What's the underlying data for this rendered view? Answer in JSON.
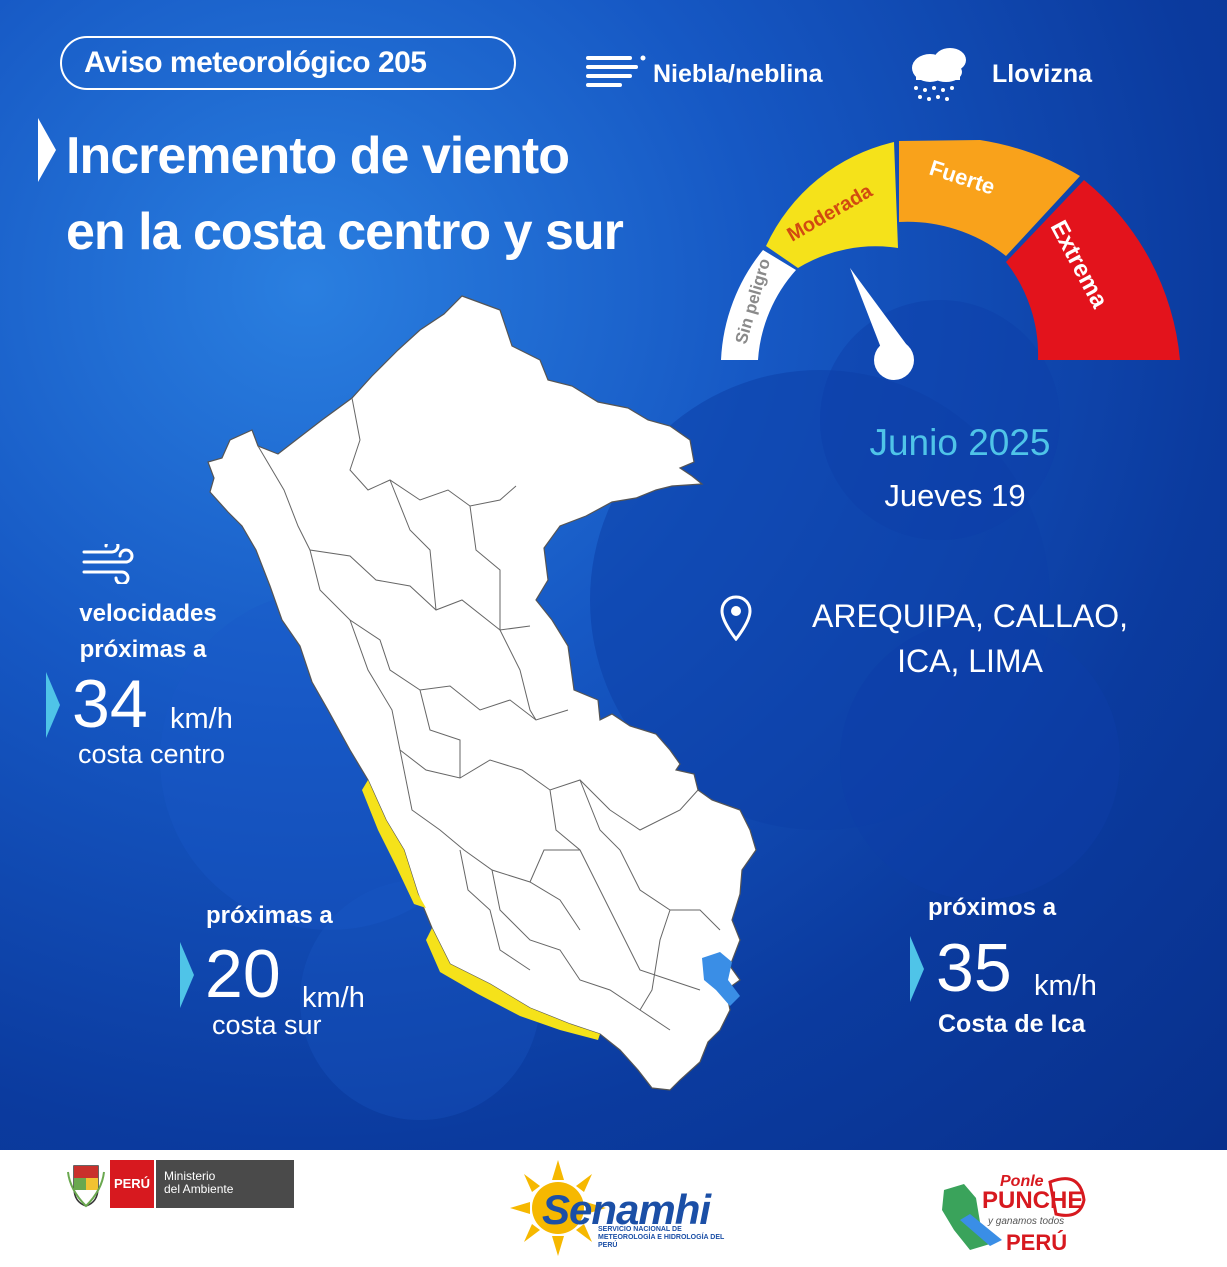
{
  "header": {
    "badge": "Aviso meteorológico 205",
    "legend": [
      {
        "icon": "fog-icon",
        "label": "Niebla/neblina"
      },
      {
        "icon": "drizzle-icon",
        "label": "Llovizna"
      }
    ]
  },
  "title": {
    "line1": "Incremento de viento",
    "line2": "en la costa centro y sur"
  },
  "gauge": {
    "levels": [
      "Sin peligro",
      "Moderada",
      "Fuerte",
      "Extrema"
    ],
    "colors": [
      "#ffffff",
      "#f5e21a",
      "#f9a21b",
      "#e3131c"
    ],
    "active_level": "Moderada"
  },
  "date": {
    "month": "Junio 2025",
    "day": "Jueves 19"
  },
  "location": {
    "icon": "location-pin-icon",
    "line1": "AREQUIPA, CALLAO,",
    "line2": "ICA, LIMA"
  },
  "wind": {
    "icon": "wind-icon",
    "centro": {
      "label1": "velocidades",
      "label2": "próximas a",
      "value": "34",
      "unit": "km/h",
      "zone": "costa centro"
    },
    "sur": {
      "label": "próximas a",
      "value": "20",
      "unit": "km/h",
      "zone": "costa sur"
    },
    "ica": {
      "label": "próximos a",
      "value": "35",
      "unit": "km/h",
      "zone": "Costa de Ica"
    }
  },
  "footer": {
    "peru": "PERÚ",
    "ministry_line1": "Ministerio",
    "ministry_line2": "del Ambiente",
    "senamhi": "Senamhi",
    "senamhi_sub": "SERVICIO NACIONAL DE METEOROLOGÍA E HIDROLOGÍA DEL PERÚ",
    "punche_line1": "Ponle",
    "punche_line2": "PUNCHE",
    "punche_line3": "y ganamos todos",
    "punche_line4": "PERÚ"
  }
}
